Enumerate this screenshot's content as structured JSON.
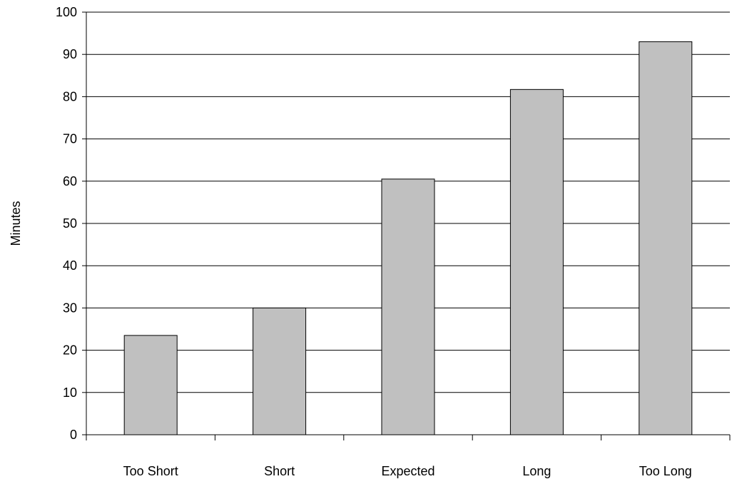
{
  "chart_data": {
    "type": "bar",
    "title": "",
    "xlabel": "",
    "ylabel": "Minutes",
    "categories": [
      "Too Short",
      "Short",
      "Expected",
      "Long",
      "Too Long"
    ],
    "values": [
      23.5,
      30,
      60.5,
      81.7,
      93
    ],
    "ylim": [
      0,
      100
    ],
    "yticks": [
      0,
      10,
      20,
      30,
      40,
      50,
      60,
      70,
      80,
      90,
      100
    ],
    "grid": true,
    "legend": "none",
    "bar_color": "#c0c0c0",
    "bar_edge_color": "#000000",
    "grid_color": "#000000"
  }
}
